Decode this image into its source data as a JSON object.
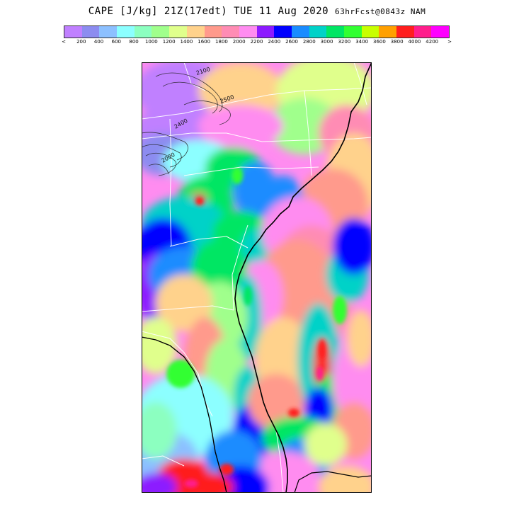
{
  "title": {
    "main": "CAPE [J/kg] 21Z(17edt) TUE 11 Aug 2020",
    "sub": "63hrFcst@0843z NAM"
  },
  "colorbar": {
    "colors": [
      "#c080ff",
      "#8c8cf0",
      "#8cc0ff",
      "#8cffff",
      "#8cffc0",
      "#a0ff8c",
      "#e0ff8c",
      "#ffd28c",
      "#ff9a8c",
      "#ff8cb4",
      "#ff8cf0",
      "#8c1aff",
      "#0000ff",
      "#1a8cff",
      "#00d2c8",
      "#00e664",
      "#32ff32",
      "#c8ff00",
      "#ffa000",
      "#ff1e1e",
      "#ff1e8c",
      "#ff00ff"
    ],
    "tick_labels": [
      "<",
      "200",
      "400",
      "600",
      "800",
      "1000",
      "1200",
      "1400",
      "1600",
      "1800",
      "2000",
      "2200",
      "2400",
      "2600",
      "2800",
      "3000",
      "3200",
      "3400",
      "3600",
      "3800",
      "4000",
      "4200",
      ">"
    ]
  },
  "map": {
    "contour_labels": [
      "2100",
      "2500",
      "2400",
      "2000"
    ]
  }
}
